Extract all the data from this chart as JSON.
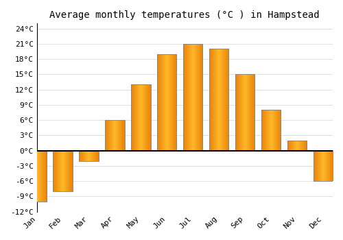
{
  "title": "Average monthly temperatures (°C ) in Hampstead",
  "months": [
    "Jan",
    "Feb",
    "Mar",
    "Apr",
    "May",
    "Jun",
    "Jul",
    "Aug",
    "Sep",
    "Oct",
    "Nov",
    "Dec"
  ],
  "values": [
    -10,
    -8,
    -2,
    6,
    13,
    19,
    21,
    20,
    15,
    8,
    2,
    -6
  ],
  "bar_color_left": "#E8820A",
  "bar_color_center": "#FFB830",
  "bar_edge_color": "#888888",
  "bar_edge_width": 0.5,
  "ylim": [
    -12,
    25
  ],
  "yticks": [
    -12,
    -9,
    -6,
    -3,
    0,
    3,
    6,
    9,
    12,
    15,
    18,
    21,
    24
  ],
  "ytick_labels": [
    "-12°C",
    "-9°C",
    "-6°C",
    "-3°C",
    "0°C",
    "3°C",
    "6°C",
    "9°C",
    "12°C",
    "15°C",
    "18°C",
    "21°C",
    "24°C"
  ],
  "background_color": "#ffffff",
  "grid_color": "#e0e0e0",
  "zero_line_color": "#000000",
  "spine_color": "#000000",
  "title_fontsize": 10,
  "tick_fontsize": 8,
  "bar_width": 0.75,
  "figsize": [
    5.0,
    3.5
  ],
  "dpi": 100
}
